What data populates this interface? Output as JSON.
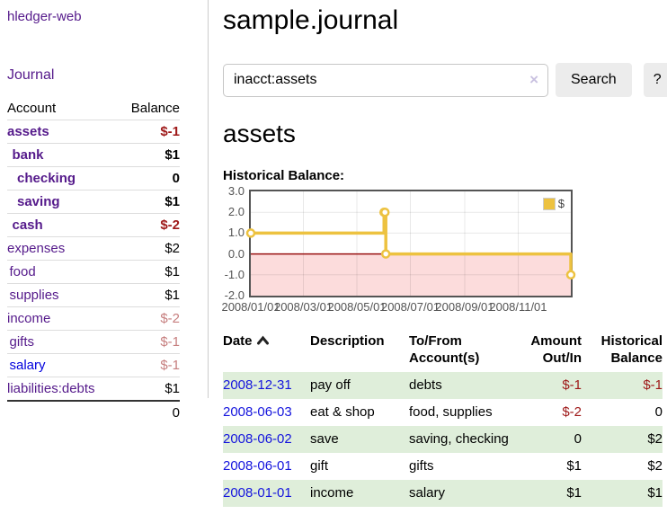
{
  "app": {
    "title": "hledger-web",
    "nav_journal": "Journal"
  },
  "colors": {
    "link_purple": "#551a8b",
    "link_blue": "#0000dd",
    "date_link_blue": "#1414dd",
    "negative_strong": "#9e1818",
    "negative_soft": "#c67e7e",
    "row_stripe_green": "#dfeeda"
  },
  "sidebar": {
    "table": {
      "col_account": "Account",
      "col_balance": "Balance"
    },
    "accounts": [
      {
        "name": "assets",
        "indent": 1,
        "bold": true,
        "link_color": "purple",
        "balance": "$-1",
        "balance_style": "neg-strong"
      },
      {
        "name": "bank",
        "indent": 2,
        "bold": true,
        "link_color": "purple",
        "balance": "$1",
        "balance_style": "pos"
      },
      {
        "name": "checking",
        "indent": 3,
        "bold": true,
        "link_color": "purple",
        "balance": "0",
        "balance_style": "pos"
      },
      {
        "name": "saving",
        "indent": 3,
        "bold": true,
        "link_color": "purple",
        "balance": "$1",
        "balance_style": "pos"
      },
      {
        "name": "cash",
        "indent": 2,
        "bold": true,
        "link_color": "purple",
        "balance": "$-2",
        "balance_style": "neg-strong"
      },
      {
        "name": "expenses",
        "indent": 1,
        "bold": false,
        "link_color": "purple",
        "balance": "$2",
        "balance_style": "pos"
      },
      {
        "name": "food",
        "indent": 2,
        "bold": false,
        "link_color": "purple",
        "balance": "$1",
        "balance_style": "pos"
      },
      {
        "name": "supplies",
        "indent": 2,
        "bold": false,
        "link_color": "purple",
        "balance": "$1",
        "balance_style": "pos"
      },
      {
        "name": "income",
        "indent": 1,
        "bold": false,
        "link_color": "purple",
        "balance": "$-2",
        "balance_style": "neg-soft"
      },
      {
        "name": "gifts",
        "indent": 2,
        "bold": false,
        "link_color": "purple",
        "balance": "$-1",
        "balance_style": "neg-soft"
      },
      {
        "name": "salary",
        "indent": 2,
        "bold": false,
        "link_color": "blue",
        "balance": "$-1",
        "balance_style": "neg-soft"
      },
      {
        "name": "liabilities:debts",
        "indent": 1,
        "bold": false,
        "link_color": "purple",
        "balance": "$1",
        "balance_style": "pos"
      }
    ],
    "total": "0"
  },
  "main": {
    "title": "sample.journal",
    "search": {
      "query": "inacct:assets",
      "clear_icon": "×",
      "button": "Search",
      "help_button": "?"
    },
    "account_heading": "assets",
    "chart_label": "Historical Balance:"
  },
  "chart_data": {
    "type": "line",
    "step": true,
    "title": "Historical Balance:",
    "series": [
      {
        "name": "$",
        "points": [
          [
            "2008/01/01",
            1.0
          ],
          [
            "2008/06/01",
            2.0
          ],
          [
            "2008/06/02",
            2.0
          ],
          [
            "2008/06/03",
            0.0
          ],
          [
            "2008/12/31",
            -1.0
          ]
        ]
      }
    ],
    "x_range": [
      "2008/01/01",
      "2008/12/31"
    ],
    "x_ticks": [
      "2008/01/01",
      "2008/03/01",
      "2008/05/01",
      "2008/07/01",
      "2008/09/01",
      "2008/11/01"
    ],
    "ylim": [
      -2.0,
      3.0
    ],
    "y_ticks": [
      3.0,
      2.0,
      1.0,
      0.0,
      -1.0,
      -2.0
    ],
    "y_tick_labels": [
      "3.0",
      "2.0",
      "1.0",
      "0.0",
      "-1.0",
      "-2.0"
    ],
    "legend": {
      "position": "top-right",
      "label": "$",
      "swatch_color": "#edc240"
    },
    "colors": {
      "series": "#edc240",
      "marker_fill": "#ffffff",
      "negative_fill": "#fcdcdc",
      "zero_line": "#991111",
      "grid": "rgba(0,0,0,0.09)",
      "border": "#545454",
      "tick_text": "#545454"
    }
  },
  "register_table": {
    "headers": {
      "date": "Date",
      "description": "Description",
      "account": "To/From Account(s)",
      "amount": "Amount Out/In",
      "balance": "Historical Balance"
    },
    "sort": {
      "column": "date",
      "direction": "ascending"
    },
    "rows": [
      {
        "date": "2008-12-31",
        "description": "pay off",
        "accounts": "debts",
        "amount": "$-1",
        "amount_style": "neg-strong",
        "balance": "$-1",
        "balance_style": "neg-strong",
        "striped": true
      },
      {
        "date": "2008-06-03",
        "description": "eat & shop",
        "accounts": "food, supplies",
        "amount": "$-2",
        "amount_style": "neg-strong",
        "balance": "0",
        "balance_style": "pos",
        "striped": false
      },
      {
        "date": "2008-06-02",
        "description": "save",
        "accounts": "saving, checking",
        "amount": "0",
        "amount_style": "pos",
        "balance": "$2",
        "balance_style": "pos",
        "striped": true
      },
      {
        "date": "2008-06-01",
        "description": "gift",
        "accounts": "gifts",
        "amount": "$1",
        "amount_style": "pos",
        "balance": "$2",
        "balance_style": "pos",
        "striped": false
      },
      {
        "date": "2008-01-01",
        "description": "income",
        "accounts": "salary",
        "amount": "$1",
        "amount_style": "pos",
        "balance": "$1",
        "balance_style": "pos",
        "striped": true
      }
    ]
  }
}
